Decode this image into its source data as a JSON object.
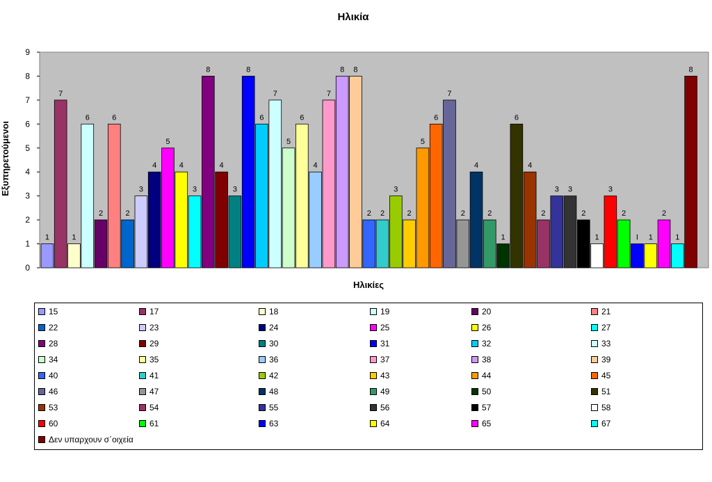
{
  "chart_data": {
    "type": "bar",
    "title": "Ηλικία",
    "xlabel": "Ηλικίες",
    "ylabel": "Εξυπηρετούμενοι",
    "ylim": [
      0,
      9
    ],
    "yticks": [
      "0",
      "1",
      "2",
      "3",
      "4",
      "5",
      "6",
      "7",
      "8",
      "9"
    ],
    "grid": false,
    "legend_placement": "bottom",
    "plot_background": "#c0c0c0",
    "categories": [
      "15",
      "17",
      "18",
      "19",
      "20",
      "21",
      "22",
      "23",
      "24",
      "25",
      "26",
      "27",
      "28",
      "29",
      "30",
      "31",
      "32",
      "33",
      "34",
      "35",
      "36",
      "37",
      "38",
      "39",
      "40",
      "41",
      "42",
      "43",
      "44",
      "45",
      "46",
      "47",
      "48",
      "49",
      "50",
      "51",
      "53",
      "54",
      "55",
      "56",
      "57",
      "58",
      "60",
      "61",
      "63",
      "64",
      "65",
      "67",
      "Δεν υπαρχουν σ΄οιχεία"
    ],
    "values": [
      1,
      7,
      1,
      6,
      2,
      6,
      2,
      3,
      4,
      5,
      4,
      3,
      8,
      4,
      3,
      8,
      6,
      7,
      5,
      6,
      4,
      7,
      8,
      8,
      2,
      2,
      3,
      2,
      5,
      6,
      7,
      2,
      4,
      2,
      1,
      6,
      4,
      2,
      3,
      3,
      2,
      1,
      3,
      2,
      1,
      1,
      2,
      1,
      8
    ],
    "value_labels": [
      "1",
      "7",
      "1",
      "6",
      "2",
      "6",
      "2",
      "3",
      "4",
      "5",
      "4",
      "3",
      "8",
      "4",
      "3",
      "8",
      "6",
      "7",
      "5",
      "6",
      "4",
      "7",
      "8",
      "8",
      "2",
      "2",
      "3",
      "2",
      "5",
      "6",
      "7",
      "2",
      "4",
      "2",
      "1",
      "6",
      "4",
      "2",
      "3",
      "3",
      "2",
      "1",
      "3",
      "2",
      "I",
      "1",
      "2",
      "1",
      "8"
    ],
    "colors": [
      "#9999ff",
      "#993366",
      "#ffffcc",
      "#ccffff",
      "#660066",
      "#ff8080",
      "#0066cc",
      "#ccccff",
      "#000080",
      "#ff00ff",
      "#ffff00",
      "#00ffff",
      "#800080",
      "#800000",
      "#008080",
      "#0000ff",
      "#00ccff",
      "#ccffff",
      "#ccffcc",
      "#ffff99",
      "#99ccff",
      "#ff99cc",
      "#cc99ff",
      "#ffcc99",
      "#3366ff",
      "#33cccc",
      "#99cc00",
      "#ffcc00",
      "#ff9900",
      "#ff6600",
      "#666699",
      "#969696",
      "#003366",
      "#339966",
      "#003300",
      "#333300",
      "#993300",
      "#993366",
      "#333399",
      "#333333",
      "#000000",
      "#ffffff",
      "#ff0000",
      "#00ff00",
      "#0000ff",
      "#ffff00",
      "#ff00ff",
      "#00ffff",
      "#800000"
    ]
  }
}
